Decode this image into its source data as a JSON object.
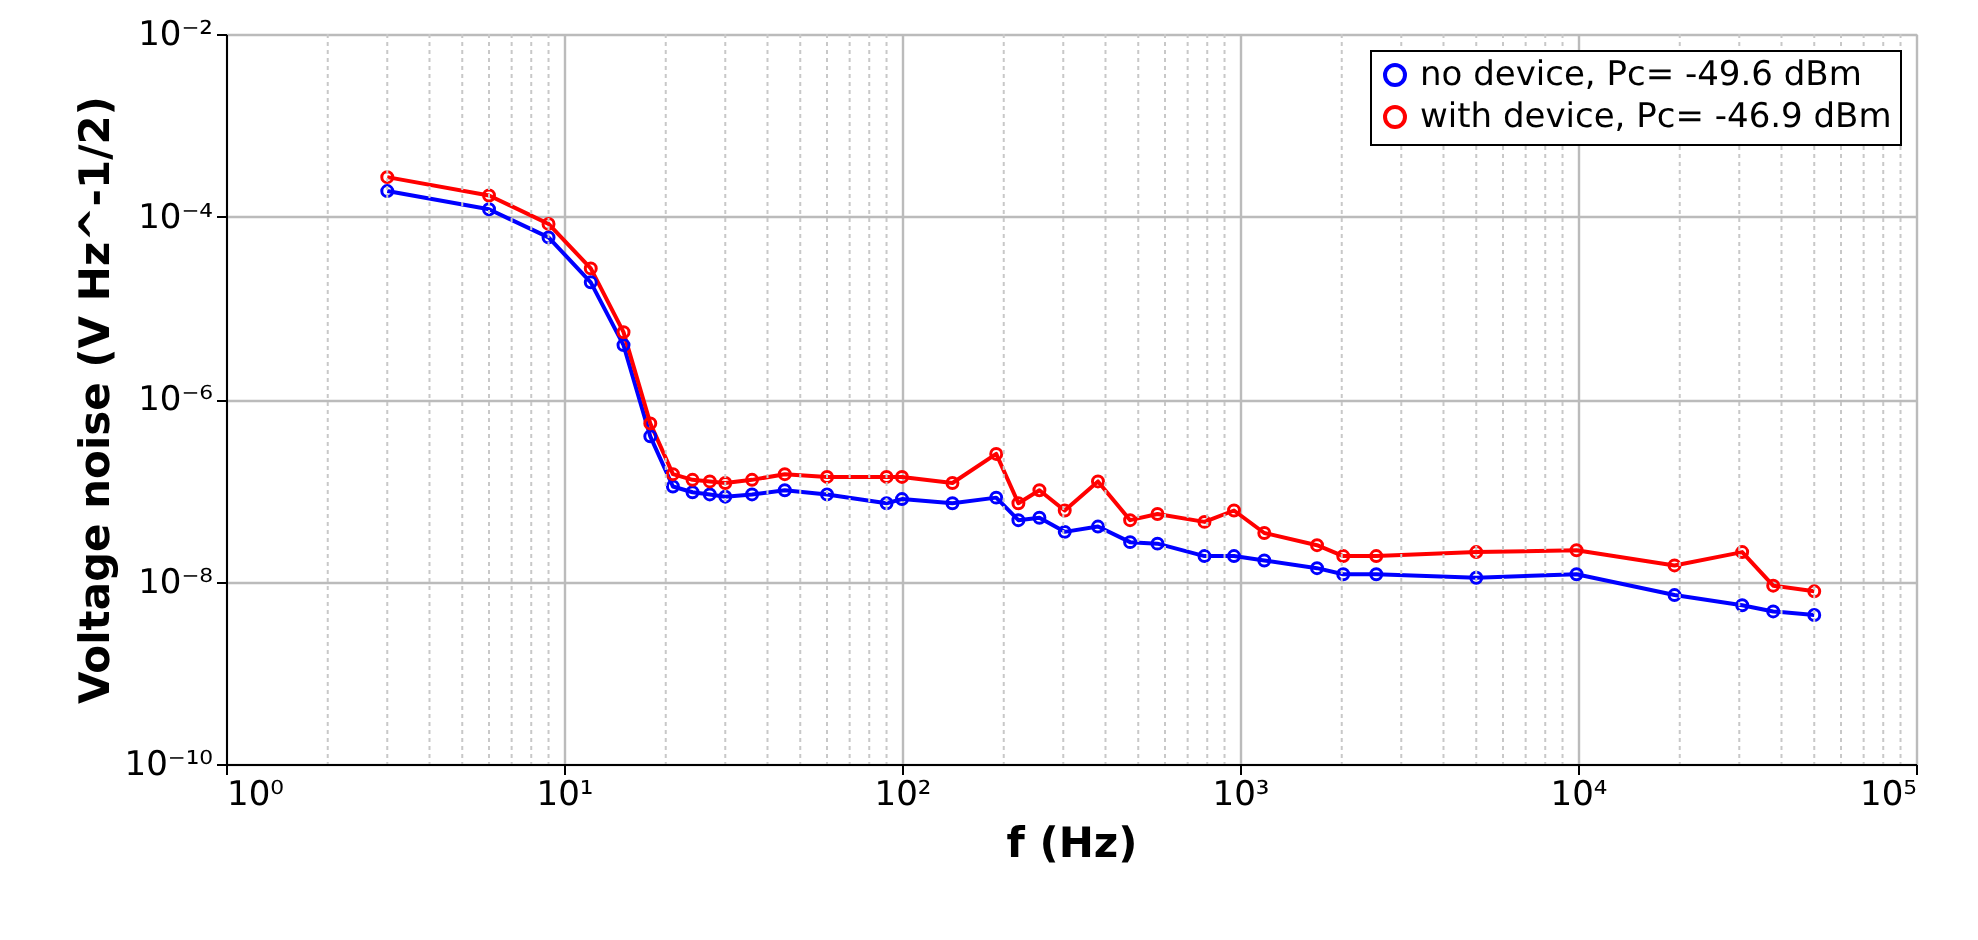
{
  "chart_data": {
    "type": "line",
    "xlabel": "f (Hz)",
    "ylabel": "Voltage noise (V Hz^-1/2)",
    "log": "xy",
    "grid": true,
    "legend": "top right",
    "marker": "circle",
    "line_style": "solid",
    "xlim": [
      1,
      100000
    ],
    "xticks": [
      {
        "value": 1,
        "label": "10⁰"
      },
      {
        "value": 10,
        "label": "10¹"
      },
      {
        "value": 100,
        "label": "10²"
      },
      {
        "value": 1000,
        "label": "10³"
      },
      {
        "value": 10000,
        "label": "10⁴"
      },
      {
        "value": 100000,
        "label": "10⁵"
      }
    ],
    "ylim": [
      1e-10,
      0.01
    ],
    "yticks": [
      {
        "value": 1e-10,
        "label": "10⁻¹⁰"
      },
      {
        "value": 1e-08,
        "label": "10⁻⁸"
      },
      {
        "value": 1e-06,
        "label": "10⁻⁶"
      },
      {
        "value": 0.0001,
        "label": "10⁻⁴"
      },
      {
        "value": 0.01,
        "label": "10⁻²"
      }
    ],
    "series": [
      {
        "name": "no device, Pc= -49.6 dBm",
        "color": "#0000ff",
        "x": [
          3,
          6,
          9,
          12,
          15,
          18,
          21,
          24,
          27,
          30,
          36,
          45,
          60,
          90,
          100,
          141,
          190,
          221,
          255,
          303,
          380,
          473,
          570,
          785,
          960,
          1180,
          1690,
          2020,
          2530,
          5000,
          9900,
          19300,
          30600,
          37800,
          50000
        ],
        "values": [
          0.00019,
          0.00012,
          5.9e-05,
          1.9e-05,
          3.9e-06,
          3.9e-07,
          1.1e-07,
          9.5e-08,
          9e-08,
          8.5e-08,
          9e-08,
          1e-07,
          9e-08,
          7.2e-08,
          8e-08,
          7.2e-08,
          8.3e-08,
          4.7e-08,
          5e-08,
          3.5e-08,
          4e-08,
          2.7e-08,
          2.6e-08,
          1.9e-08,
          1.9e-08,
          1.7e-08,
          1.4e-08,
          1.2e-08,
          1.2e-08,
          1.1e-08,
          1.2e-08,
          7.1e-09,
          5.5e-09,
          4.7e-09,
          4.3e-09
        ]
      },
      {
        "name": "with device, Pc= -46.9 dBm",
        "color": "#ff0000",
        "x": [
          3,
          6,
          9,
          12,
          15,
          18,
          21,
          24,
          27,
          30,
          36,
          45,
          60,
          90,
          100,
          141,
          190,
          221,
          255,
          303,
          380,
          473,
          570,
          785,
          960,
          1180,
          1690,
          2020,
          2530,
          5000,
          9900,
          19300,
          30600,
          37800,
          50000
        ],
        "values": [
          0.00027,
          0.00017,
          8.3e-05,
          2.7e-05,
          5.4e-06,
          5.4e-07,
          1.5e-07,
          1.3e-07,
          1.25e-07,
          1.2e-07,
          1.3e-07,
          1.5e-07,
          1.4e-07,
          1.4e-07,
          1.4e-07,
          1.2e-07,
          2.5e-07,
          7.2e-08,
          1e-07,
          6e-08,
          1.25e-07,
          4.7e-08,
          5.5e-08,
          4.5e-08,
          6e-08,
          3.4e-08,
          2.5e-08,
          1.9e-08,
          1.9e-08,
          2.1e-08,
          2.2e-08,
          1.5e-08,
          2.1e-08,
          9e-09,
          7.8e-09
        ]
      }
    ]
  }
}
